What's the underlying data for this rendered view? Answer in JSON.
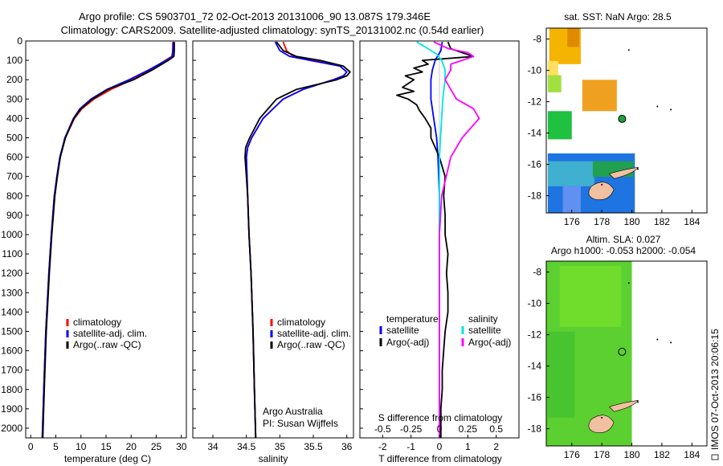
{
  "header": {
    "line1": "Argo profile: CS 5903701_72 02-Oct-2013 20131006_90 13.087S 179.346E",
    "line2": "Climatology: CARS2009. Satellite-adjusted climatology: synTS_20131002.nc (0.54d earlier)"
  },
  "colors": {
    "climatology": "#ff0000",
    "satellite": "#0000ff",
    "argo": "#000000",
    "sal_sat": "#00e5e5",
    "sal_argo": "#ff00ff"
  },
  "depth_ticks": [
    0,
    100,
    200,
    300,
    400,
    500,
    600,
    700,
    800,
    900,
    1000,
    1100,
    1200,
    1300,
    1400,
    1500,
    1600,
    1700,
    1800,
    1900,
    2000
  ],
  "chart_data": [
    {
      "type": "line",
      "xlabel": "temperature (deg C)",
      "xlim": [
        -1,
        31
      ],
      "ylim": [
        0,
        2050
      ],
      "xticks": [
        0,
        5,
        10,
        15,
        20,
        25,
        30
      ],
      "legend": [
        "climatology",
        "satellite-adj. clim.",
        "Argo(..raw -QC)"
      ],
      "series": [
        {
          "name": "climatology",
          "depth": [
            5,
            50,
            80,
            100,
            150,
            200,
            250,
            300,
            350,
            400,
            500,
            600,
            700,
            800,
            1000,
            1200,
            1500,
            1800,
            2050
          ],
          "values": [
            28.3,
            28.3,
            28.1,
            26.8,
            23.8,
            20.2,
            16.0,
            12.6,
            10.2,
            8.7,
            6.9,
            5.8,
            5.2,
            4.7,
            4.1,
            3.6,
            3.0,
            2.6,
            2.3
          ]
        },
        {
          "name": "satellite-adj. clim.",
          "depth": [
            5,
            50,
            80,
            100,
            150,
            200,
            250,
            300,
            350,
            400,
            500,
            600,
            700,
            800,
            1000,
            1200,
            1500,
            1800,
            2050
          ],
          "values": [
            28.4,
            28.3,
            28.2,
            27.0,
            23.5,
            19.6,
            15.2,
            12.0,
            9.8,
            8.5,
            6.8,
            5.8,
            5.2,
            4.7,
            4.1,
            3.6,
            3.0,
            2.6,
            2.3
          ]
        },
        {
          "name": "Argo(..raw -QC)",
          "depth": [
            5,
            50,
            80,
            100,
            150,
            200,
            250,
            300,
            350,
            400,
            500,
            600,
            700,
            800,
            1000,
            1200,
            1500,
            1800,
            2050
          ],
          "values": [
            28.6,
            28.6,
            28.5,
            27.4,
            24.2,
            20.5,
            15.4,
            12.3,
            10.0,
            8.6,
            6.9,
            5.9,
            5.3,
            4.8,
            4.2,
            3.7,
            3.1,
            2.7,
            2.4
          ]
        }
      ]
    },
    {
      "type": "line",
      "xlabel": "salinity",
      "xlim": [
        33.7,
        36.1
      ],
      "ylim": [
        0,
        2050
      ],
      "xticks": [
        34,
        34.5,
        35,
        35.5,
        36
      ],
      "legend": [
        "climatology",
        "satellite-adj. clim.",
        "Argo(..raw -QC)"
      ],
      "annotation": [
        "Argo Australia",
        "PI: Susan Wijffels"
      ],
      "series": [
        {
          "name": "climatology",
          "depth": [
            5,
            50,
            80,
            100,
            130,
            160,
            180,
            200,
            250,
            300,
            400,
            500,
            550,
            600,
            700,
            800,
            1000,
            1200,
            1500,
            1800,
            2050
          ],
          "values": [
            35.05,
            35.1,
            35.2,
            35.5,
            35.9,
            36.0,
            35.95,
            35.8,
            35.35,
            35.05,
            34.75,
            34.58,
            34.52,
            34.5,
            34.51,
            34.52,
            34.54,
            34.57,
            34.6,
            34.62,
            34.64
          ]
        },
        {
          "name": "satellite-adj. clim.",
          "depth": [
            5,
            50,
            80,
            100,
            130,
            160,
            180,
            200,
            250,
            300,
            400,
            500,
            550,
            600,
            700,
            800,
            1000,
            1200,
            1500,
            1800,
            2050
          ],
          "values": [
            34.93,
            35.0,
            35.15,
            35.45,
            35.9,
            36.0,
            35.95,
            35.8,
            35.35,
            35.05,
            34.75,
            34.58,
            34.52,
            34.5,
            34.51,
            34.52,
            34.54,
            34.57,
            34.6,
            34.62,
            34.64
          ]
        },
        {
          "name": "Argo(..raw -QC)",
          "depth": [
            5,
            50,
            80,
            100,
            130,
            160,
            180,
            200,
            250,
            300,
            400,
            500,
            550,
            600,
            700,
            800,
            1000,
            1200,
            1500,
            1800,
            2050
          ],
          "values": [
            34.95,
            35.05,
            35.25,
            35.6,
            35.95,
            36.05,
            36.0,
            35.85,
            35.25,
            34.95,
            34.7,
            34.55,
            34.49,
            34.48,
            34.5,
            34.52,
            34.54,
            34.57,
            34.6,
            34.62,
            34.64
          ]
        }
      ]
    },
    {
      "type": "line",
      "xlabel": "T difference from climatology",
      "xlabel_top": "S difference from climatology",
      "xlim": [
        -2.8,
        2.8
      ],
      "ylim": [
        0,
        2050
      ],
      "xticks": [
        -2,
        -1,
        0,
        1,
        2
      ],
      "xticks_top": [
        "-0.5",
        "-0.25",
        "0",
        "0.25",
        "0.5"
      ],
      "legend_temperature": [
        "temperature",
        "satellite",
        "Argo(-adj)"
      ],
      "legend_salinity": [
        "salinity",
        "satellite",
        "Argo(-adj)"
      ],
      "series": [
        {
          "name": "satellite",
          "depth": [
            5,
            50,
            100,
            150,
            200,
            300,
            400,
            500,
            600,
            800,
            1000,
            1500,
            2050
          ],
          "values": [
            0.1,
            0.05,
            -0.15,
            -0.25,
            -0.3,
            -0.3,
            -0.2,
            -0.1,
            -0.05,
            0,
            0,
            0,
            0
          ]
        },
        {
          "name": "Argo(-adj)",
          "depth": [
            5,
            40,
            60,
            80,
            100,
            120,
            140,
            160,
            180,
            200,
            220,
            240,
            260,
            280,
            300,
            330,
            360,
            400,
            450,
            500,
            550,
            600,
            700,
            800,
            900,
            1000,
            1100,
            1200,
            1300,
            1400,
            1500,
            1600,
            1700,
            1800,
            1900,
            2050
          ],
          "values": [
            0.3,
            0.4,
            0.8,
            1.2,
            -0.6,
            -0.4,
            -0.9,
            -0.6,
            -1.2,
            -0.9,
            -1.1,
            -1.3,
            -0.9,
            -1.5,
            -1.1,
            -0.8,
            -0.7,
            -0.5,
            -0.3,
            -0.3,
            -0.15,
            0.0,
            0.2,
            0.15,
            0.2,
            0.2,
            0.3,
            0.25,
            0.3,
            0.3,
            0.2,
            0.15,
            0.1,
            0.1,
            0.05,
            0.05
          ]
        },
        {
          "name": "salinity satellite",
          "depth": [
            5,
            40,
            70,
            100,
            150,
            200,
            300,
            400,
            500,
            600,
            800,
            1000,
            1500,
            2050
          ],
          "values": [
            -0.2,
            -0.1,
            -0.02,
            0.02,
            0.05,
            0.05,
            0.03,
            0.02,
            0.01,
            0,
            0,
            0,
            0,
            0
          ]
        },
        {
          "name": "salinity Argo(-adj)",
          "depth": [
            5,
            40,
            60,
            80,
            100,
            120,
            150,
            200,
            250,
            300,
            350,
            400,
            500,
            600,
            800,
            1000,
            1500,
            2050
          ],
          "values": [
            -0.05,
            0.08,
            0.25,
            0.3,
            0.2,
            0.1,
            0.1,
            0.05,
            0.1,
            0.15,
            0.3,
            0.35,
            0.2,
            0.1,
            0.02,
            0,
            0,
            0
          ]
        }
      ]
    },
    {
      "type": "heatmap",
      "title": "sat. SST: NaN Argo: 28.5",
      "xticks": [
        176,
        178,
        180,
        182,
        184
      ],
      "yticks": [
        -8,
        -10,
        -12,
        -14,
        -16,
        -18
      ]
    },
    {
      "type": "heatmap",
      "title": [
        "Altim. SLA: 0.027",
        "Argo h1000: -0.053 h2000: -0.054"
      ],
      "xticks": [
        176,
        178,
        180,
        182,
        184
      ],
      "yticks": [
        -8,
        -10,
        -12,
        -14,
        -16,
        -18
      ]
    }
  ],
  "footer": {
    "stamp": "IMOS 07-Oct-2013 20:06:15"
  }
}
